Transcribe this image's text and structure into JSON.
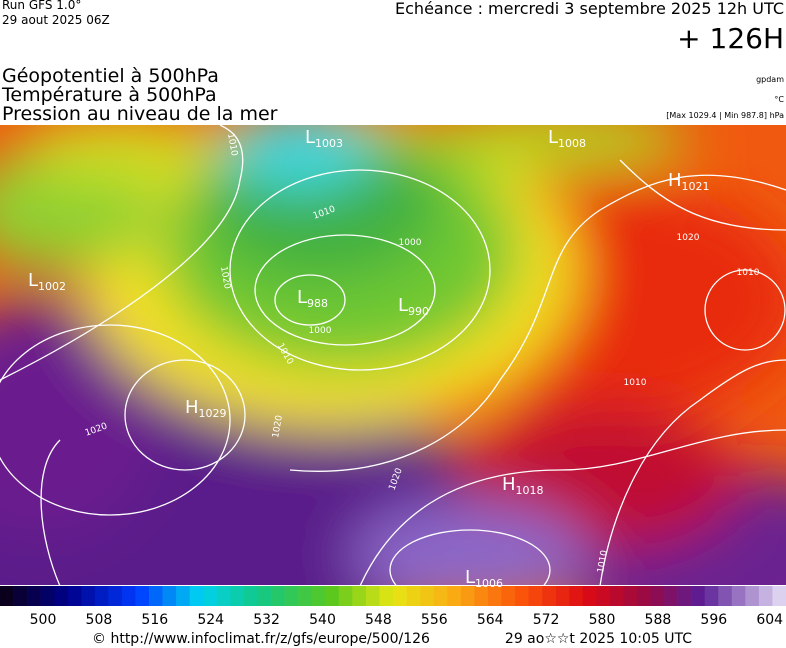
{
  "header": {
    "run": "Run GFS 1.0°",
    "run_date": "29 aout 2025 06Z",
    "forecast": "Echéance : mercredi 3 septembre 2025 12h UTC",
    "lead": "+ 126H"
  },
  "legend": {
    "lines": [
      "Géopotentiel à 500hPa",
      "Température à 500hPa",
      "Pression au niveau de la mer"
    ],
    "units": [
      "gpdam",
      "°C",
      "[Max 1029.4 | Min 987.8] hPa"
    ]
  },
  "map": {
    "centers": [
      {
        "kind": "L",
        "value": "1003"
      },
      {
        "kind": "L",
        "value": "1008"
      },
      {
        "kind": "H",
        "value": "1021"
      },
      {
        "kind": "L",
        "value": "1002"
      },
      {
        "kind": "L",
        "value": "988"
      },
      {
        "kind": "L",
        "value": "990"
      },
      {
        "kind": "H",
        "value": "1029"
      },
      {
        "kind": "H",
        "value": "1018"
      },
      {
        "kind": "L",
        "value": "1006"
      }
    ],
    "isobar_labels": [
      "1010",
      "1000",
      "1020",
      "1010",
      "1000",
      "1010",
      "1020",
      "1010",
      "1020",
      "1020",
      "1020",
      "1010",
      "1010"
    ]
  },
  "colorbar": {
    "labels": [
      "500",
      "508",
      "516",
      "524",
      "532",
      "540",
      "548",
      "556",
      "564",
      "572",
      "580",
      "588",
      "596",
      "604"
    ]
  },
  "footer": {
    "url": "© http://www.infoclimat.fr/z/gfs/europe/500/126",
    "timestamp": "29 ao☆☆t 2025 10:05 UTC"
  }
}
